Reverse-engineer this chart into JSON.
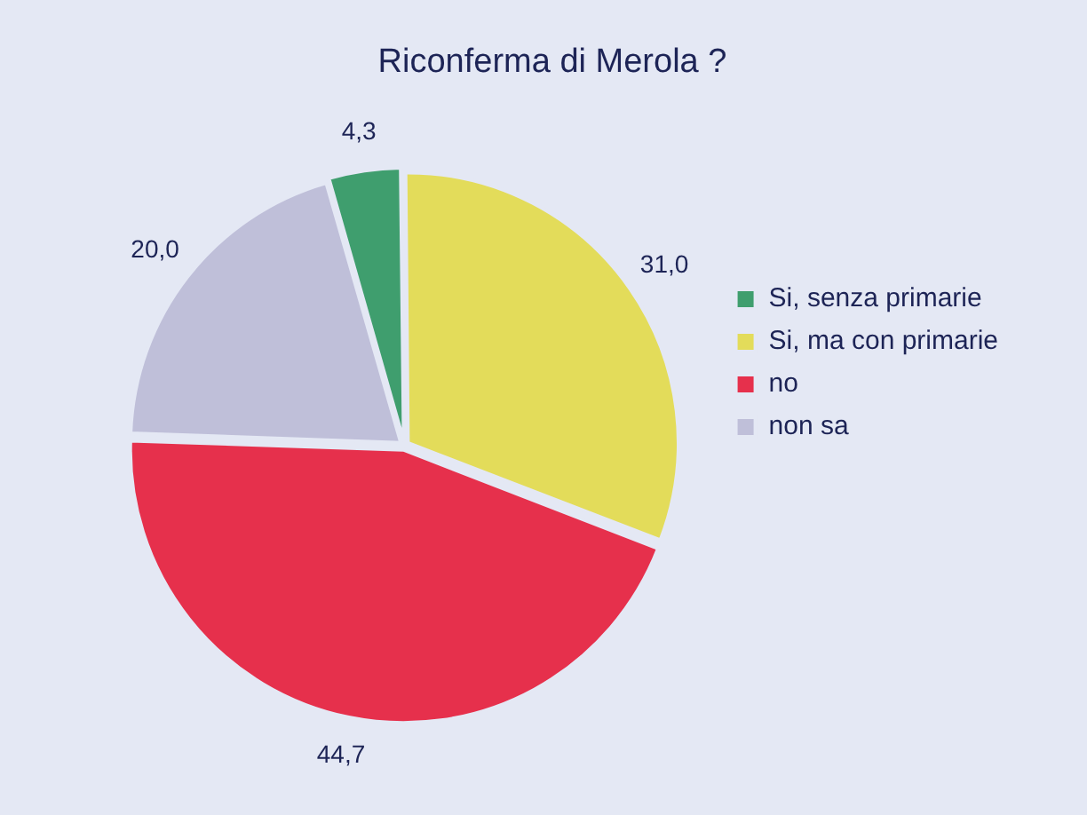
{
  "chart_data": {
    "type": "pie",
    "title": "Riconferma di Merola ?",
    "categories": [
      "Si, senza primarie",
      "Si, ma con primarie",
      "no",
      "non sa"
    ],
    "values": [
      4.3,
      31.0,
      44.7,
      20.0
    ],
    "value_labels": [
      "4,3",
      "31,0",
      "44,7",
      "20,0"
    ],
    "colors": [
      "#3f9e6e",
      "#e3dc5a",
      "#e6304c",
      "#bfbfd9"
    ],
    "legend": "right"
  }
}
